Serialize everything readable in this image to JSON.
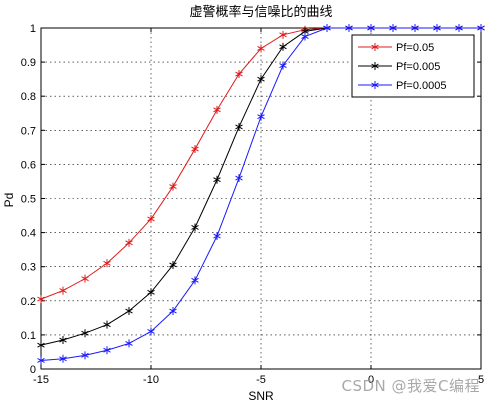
{
  "chart_data": {
    "type": "line",
    "title": "虚警概率与信噪比的曲线",
    "xlabel": "SNR",
    "ylabel": "Pd",
    "xlim": [
      -15,
      5
    ],
    "ylim": [
      0,
      1
    ],
    "xticks": [
      -15,
      -10,
      -5,
      0,
      5
    ],
    "xtick_labels": [
      "-15",
      "-10",
      "-5",
      "0",
      "5"
    ],
    "yticks": [
      0,
      0.1,
      0.2,
      0.3,
      0.4,
      0.5,
      0.6,
      0.7,
      0.8,
      0.9,
      1
    ],
    "ytick_labels": [
      "0",
      "0.1",
      "0.2",
      "0.3",
      "0.4",
      "0.5",
      "0.6",
      "0.7",
      "0.8",
      "0.9",
      "1"
    ],
    "grid": true,
    "legend_position": "top-right",
    "x": [
      -15,
      -14,
      -13,
      -12,
      -11,
      -10,
      -9,
      -8,
      -7,
      -6,
      -5,
      -4,
      -3,
      -2,
      -1,
      0,
      1,
      2,
      3,
      4,
      5
    ],
    "series": [
      {
        "name": "Pf=0.05",
        "color": "#e01b1b",
        "values": [
          0.205,
          0.23,
          0.265,
          0.31,
          0.37,
          0.44,
          0.535,
          0.645,
          0.76,
          0.865,
          0.94,
          0.98,
          0.995,
          1,
          1,
          1,
          1,
          1,
          1,
          1,
          1
        ]
      },
      {
        "name": "Pf=0.005",
        "color": "#000000",
        "values": [
          0.07,
          0.085,
          0.105,
          0.13,
          0.17,
          0.225,
          0.305,
          0.415,
          0.555,
          0.71,
          0.85,
          0.945,
          0.99,
          1,
          1,
          1,
          1,
          1,
          1,
          1,
          1
        ]
      },
      {
        "name": "Pf=0.0005",
        "color": "#1a1aff",
        "values": [
          0.025,
          0.03,
          0.04,
          0.055,
          0.075,
          0.11,
          0.17,
          0.26,
          0.39,
          0.56,
          0.74,
          0.89,
          0.975,
          1,
          1,
          1,
          1,
          1,
          1,
          1,
          1
        ]
      }
    ]
  },
  "watermark": "CSDN @我爱C编程"
}
